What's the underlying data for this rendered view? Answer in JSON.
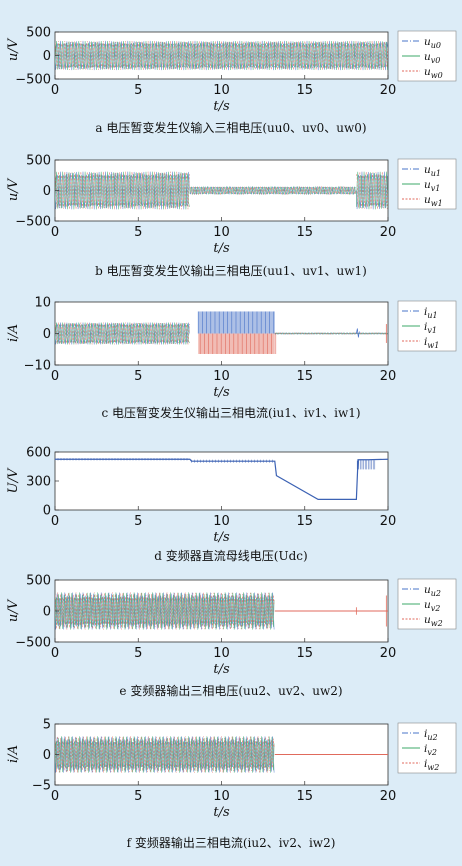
{
  "page": {
    "background": "#dcecf7"
  },
  "colors": {
    "u": "#4a74c8",
    "v": "#3ca86a",
    "w": "#e06a5c",
    "dc": "#3c62b4"
  },
  "chart_data": [
    {
      "type": "line",
      "caption": "a   电压暂变发生仪输入三相电压(uu0、uv0、uw0)",
      "xlabel": "t/s",
      "ylabel": "u/V",
      "xlim": [
        0,
        20
      ],
      "ylim": [
        -500,
        500
      ],
      "xticks": [
        "0",
        "5",
        "10",
        "15",
        "20"
      ],
      "yticks": [
        "500",
        "0",
        "−500"
      ],
      "legend": [
        "uu0",
        "uv0",
        "uw0"
      ],
      "segments": [
        {
          "t0": 0,
          "t1": 20,
          "amplitude": 310
        }
      ]
    },
    {
      "type": "line",
      "caption": "b   电压暂变发生仪输出三相电压(uu1、uv1、uw1)",
      "xlabel": "t/s",
      "ylabel": "u/V",
      "xlim": [
        0,
        20
      ],
      "ylim": [
        -500,
        500
      ],
      "xticks": [
        "0",
        "5",
        "10",
        "15",
        "20"
      ],
      "yticks": [
        "500",
        "0",
        "−500"
      ],
      "legend": [
        "uu1",
        "uv1",
        "uw1"
      ],
      "segments": [
        {
          "t0": 0,
          "t1": 8.1,
          "amplitude": 310
        },
        {
          "t0": 8.1,
          "t1": 18.1,
          "amplitude": 62
        },
        {
          "t0": 18.1,
          "t1": 20,
          "amplitude": 310
        }
      ]
    },
    {
      "type": "line",
      "caption": "c   电压暂变发生仪输出三相电流(iu1、iv1、iw1)",
      "xlabel": "t/s",
      "ylabel": "i/A",
      "xlim": [
        0,
        20
      ],
      "ylim": [
        -10,
        10
      ],
      "xticks": [
        "0",
        "5",
        "10",
        "15",
        "20"
      ],
      "yticks": [
        "10",
        "0",
        "−10"
      ],
      "legend": [
        "iu1",
        "iv1",
        "iw1"
      ],
      "segments": [
        {
          "t0": 0,
          "t1": 8.1,
          "amplitude": 3.5
        },
        {
          "t0": 8.6,
          "t1": 13.2,
          "positive": 7,
          "negative": -6.5
        },
        {
          "t0": 13.2,
          "t1": 20,
          "amplitude": 0.2
        }
      ]
    },
    {
      "type": "line",
      "caption": "d   变频器直流母线电压(Udc)",
      "xlabel": "t/s",
      "ylabel": "U/V",
      "xlim": [
        0,
        20
      ],
      "ylim": [
        0,
        600
      ],
      "xticks": [
        "0",
        "5",
        "10",
        "15",
        "20"
      ],
      "yticks": [
        "600",
        "300",
        "0"
      ],
      "legend": [],
      "series": [
        {
          "name": "Udc",
          "x": [
            0,
            8.1,
            8.2,
            13.2,
            13.3,
            15.8,
            18.1,
            18.2,
            18.8,
            20
          ],
          "y": [
            525,
            525,
            505,
            505,
            355,
            110,
            110,
            520,
            520,
            525
          ]
        }
      ]
    },
    {
      "type": "line",
      "caption": "e   变频器输出三相电压(uu2、uv2、uw2)",
      "xlabel": "t/s",
      "ylabel": "u/V",
      "xlim": [
        0,
        20
      ],
      "ylim": [
        -500,
        500
      ],
      "xticks": [
        "0",
        "5",
        "10",
        "15",
        "20"
      ],
      "yticks": [
        "500",
        "0",
        "−500"
      ],
      "legend": [
        "uu2",
        "uv2",
        "uw2"
      ],
      "segments": [
        {
          "t0": 0,
          "t1": 13.2,
          "amplitude": 300
        },
        {
          "t0": 13.2,
          "t1": 20,
          "amplitude": 0
        }
      ]
    },
    {
      "type": "line",
      "caption": "f   变频器输出三相电流(iu2、iv2、iw2)",
      "xlabel": "t/s",
      "ylabel": "i/A",
      "xlim": [
        0,
        20
      ],
      "ylim": [
        -5,
        5
      ],
      "xticks": [
        "0",
        "5",
        "10",
        "15",
        "20"
      ],
      "yticks": [
        "5",
        "0",
        "−5"
      ],
      "legend": [
        "iu2",
        "iv2",
        "iw2"
      ],
      "segments": [
        {
          "t0": 0,
          "t1": 13.2,
          "amplitude": 3
        },
        {
          "t0": 13.2,
          "t1": 20,
          "amplitude": 0
        }
      ]
    }
  ]
}
